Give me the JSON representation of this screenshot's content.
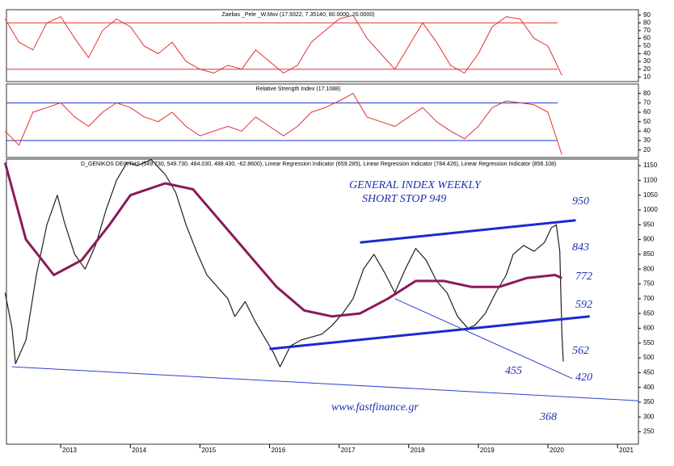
{
  "chart_data": [
    {
      "type": "line",
      "title": "Zaelias _Pele _W.Mov (17.9322, 7.35140, 80.0000, 20.0000)",
      "xlim": [
        2012.22,
        2021.3
      ],
      "ylim": [
        4,
        97
      ],
      "yticks": [
        90,
        80,
        70,
        60,
        50,
        40,
        30,
        20,
        10
      ],
      "levels": [
        80,
        20
      ],
      "level_color": "#e03030",
      "series": [
        {
          "color": "#e03030",
          "x": [
            2012.2,
            2012.4,
            2012.6,
            2012.8,
            2013.0,
            2013.2,
            2013.4,
            2013.6,
            2013.8,
            2014.0,
            2014.2,
            2014.4,
            2014.6,
            2014.8,
            2015.0,
            2015.2,
            2015.4,
            2015.6,
            2015.8,
            2016.0,
            2016.2,
            2016.4,
            2016.6,
            2016.8,
            2017.0,
            2017.2,
            2017.4,
            2017.6,
            2017.8,
            2018.0,
            2018.2,
            2018.4,
            2018.6,
            2018.8,
            2019.0,
            2019.2,
            2019.4,
            2019.6,
            2019.8,
            2020.0,
            2020.2
          ],
          "values": [
            85,
            55,
            45,
            80,
            88,
            60,
            35,
            70,
            85,
            75,
            50,
            40,
            55,
            30,
            20,
            15,
            25,
            20,
            45,
            30,
            15,
            25,
            55,
            70,
            85,
            90,
            60,
            40,
            20,
            50,
            80,
            55,
            25,
            15,
            40,
            75,
            88,
            85,
            60,
            50,
            12
          ]
        }
      ]
    },
    {
      "type": "line",
      "title": "Relative Strength Index (17.1088)",
      "xlim": [
        2012.22,
        2021.3
      ],
      "ylim": [
        12,
        90
      ],
      "yticks": [
        80,
        70,
        60,
        50,
        40,
        30,
        20
      ],
      "levels": [
        70,
        30
      ],
      "level_color": "#2030d0",
      "series": [
        {
          "color": "#e03030",
          "x": [
            2012.2,
            2012.4,
            2012.6,
            2012.8,
            2013.0,
            2013.2,
            2013.4,
            2013.6,
            2013.8,
            2014.0,
            2014.2,
            2014.4,
            2014.6,
            2014.8,
            2015.0,
            2015.2,
            2015.4,
            2015.6,
            2015.8,
            2016.0,
            2016.2,
            2016.4,
            2016.6,
            2016.8,
            2017.0,
            2017.2,
            2017.4,
            2017.6,
            2017.8,
            2018.0,
            2018.2,
            2018.4,
            2018.6,
            2018.8,
            2019.0,
            2019.2,
            2019.4,
            2019.6,
            2019.8,
            2020.0,
            2020.2
          ],
          "values": [
            40,
            25,
            60,
            65,
            70,
            55,
            45,
            60,
            70,
            65,
            55,
            50,
            60,
            45,
            35,
            40,
            45,
            40,
            55,
            45,
            35,
            45,
            60,
            65,
            72,
            80,
            55,
            50,
            45,
            55,
            65,
            50,
            40,
            32,
            45,
            65,
            72,
            70,
            68,
            60,
            15
          ]
        }
      ]
    },
    {
      "type": "line",
      "title": "D_GENIKOS DEIKTHS (549.730, 549.730, 484.030, 488.430, -62.8600), Linear Regression Indicator (659.285), Linear Regression Indicator (784.426), Linear Regression Indicator (856.108)",
      "xlim": [
        2012.22,
        2021.3
      ],
      "ylim": [
        208,
        1172
      ],
      "xticks": [
        2013,
        2014,
        2015,
        2016,
        2017,
        2018,
        2019,
        2020,
        2021
      ],
      "yticks": [
        1150,
        1100,
        1050,
        1000,
        950,
        900,
        850,
        800,
        750,
        700,
        650,
        600,
        550,
        500,
        450,
        400,
        350,
        300,
        250
      ],
      "series": [
        {
          "color": "#202020",
          "width": 1.2,
          "x": [
            2012.2,
            2012.3,
            2012.35,
            2012.5,
            2012.65,
            2012.8,
            2012.95,
            2013.05,
            2013.2,
            2013.35,
            2013.5,
            2013.65,
            2013.8,
            2013.95,
            2014.1,
            2014.3,
            2014.5,
            2014.65,
            2014.8,
            2014.95,
            2015.1,
            2015.25,
            2015.4,
            2015.5,
            2015.65,
            2015.8,
            2015.95,
            2016.05,
            2016.15,
            2016.3,
            2016.45,
            2016.6,
            2016.75,
            2016.9,
            2017.05,
            2017.2,
            2017.35,
            2017.5,
            2017.65,
            2017.8,
            2017.95,
            2018.1,
            2018.25,
            2018.4,
            2018.55,
            2018.7,
            2018.85,
            2018.95,
            2019.1,
            2019.25,
            2019.4,
            2019.5,
            2019.65,
            2019.8,
            2019.95,
            2020.05,
            2020.12,
            2020.17,
            2020.2,
            2020.22
          ],
          "values": [
            720,
            600,
            480,
            560,
            780,
            950,
            1050,
            960,
            850,
            800,
            880,
            1000,
            1100,
            1160,
            1150,
            1170,
            1120,
            1060,
            950,
            860,
            780,
            740,
            700,
            640,
            690,
            620,
            560,
            520,
            470,
            540,
            560,
            570,
            580,
            610,
            650,
            700,
            800,
            850,
            790,
            720,
            800,
            870,
            830,
            760,
            720,
            640,
            600,
            610,
            650,
            720,
            780,
            850,
            880,
            860,
            890,
            940,
            950,
            860,
            580,
            488
          ]
        },
        {
          "color": "#8b1a5a",
          "width": 3,
          "x": [
            2012.2,
            2012.5,
            2012.9,
            2013.3,
            2013.7,
            2014.0,
            2014.5,
            2014.9,
            2015.3,
            2015.7,
            2016.1,
            2016.5,
            2016.9,
            2017.3,
            2017.7,
            2018.1,
            2018.5,
            2018.9,
            2019.3,
            2019.7,
            2020.1,
            2020.2
          ],
          "values": [
            1160,
            900,
            780,
            830,
            950,
            1050,
            1090,
            1070,
            960,
            850,
            740,
            660,
            640,
            650,
            700,
            760,
            760,
            740,
            740,
            770,
            780,
            770
          ]
        },
        {
          "color": "#1a2ad0",
          "width": 3,
          "x": [
            2017.3,
            2020.4
          ],
          "values": [
            890,
            965
          ]
        },
        {
          "color": "#1a2ad0",
          "width": 3,
          "x": [
            2016.0,
            2020.6
          ],
          "values": [
            530,
            640
          ]
        },
        {
          "color": "#3040d0",
          "width": 1,
          "x": [
            2012.3,
            2021.3
          ],
          "values": [
            470,
            355
          ]
        },
        {
          "color": "#3040d0",
          "width": 1,
          "x": [
            2017.8,
            2020.35
          ],
          "values": [
            700,
            430
          ]
        }
      ],
      "annotations": [
        "GENERAL INDEX WEEKLY",
        "SHORT STOP 949",
        "950",
        "843",
        "772",
        "592",
        "562",
        "455",
        "420",
        "368",
        "www.fastfinance.gr"
      ]
    }
  ]
}
